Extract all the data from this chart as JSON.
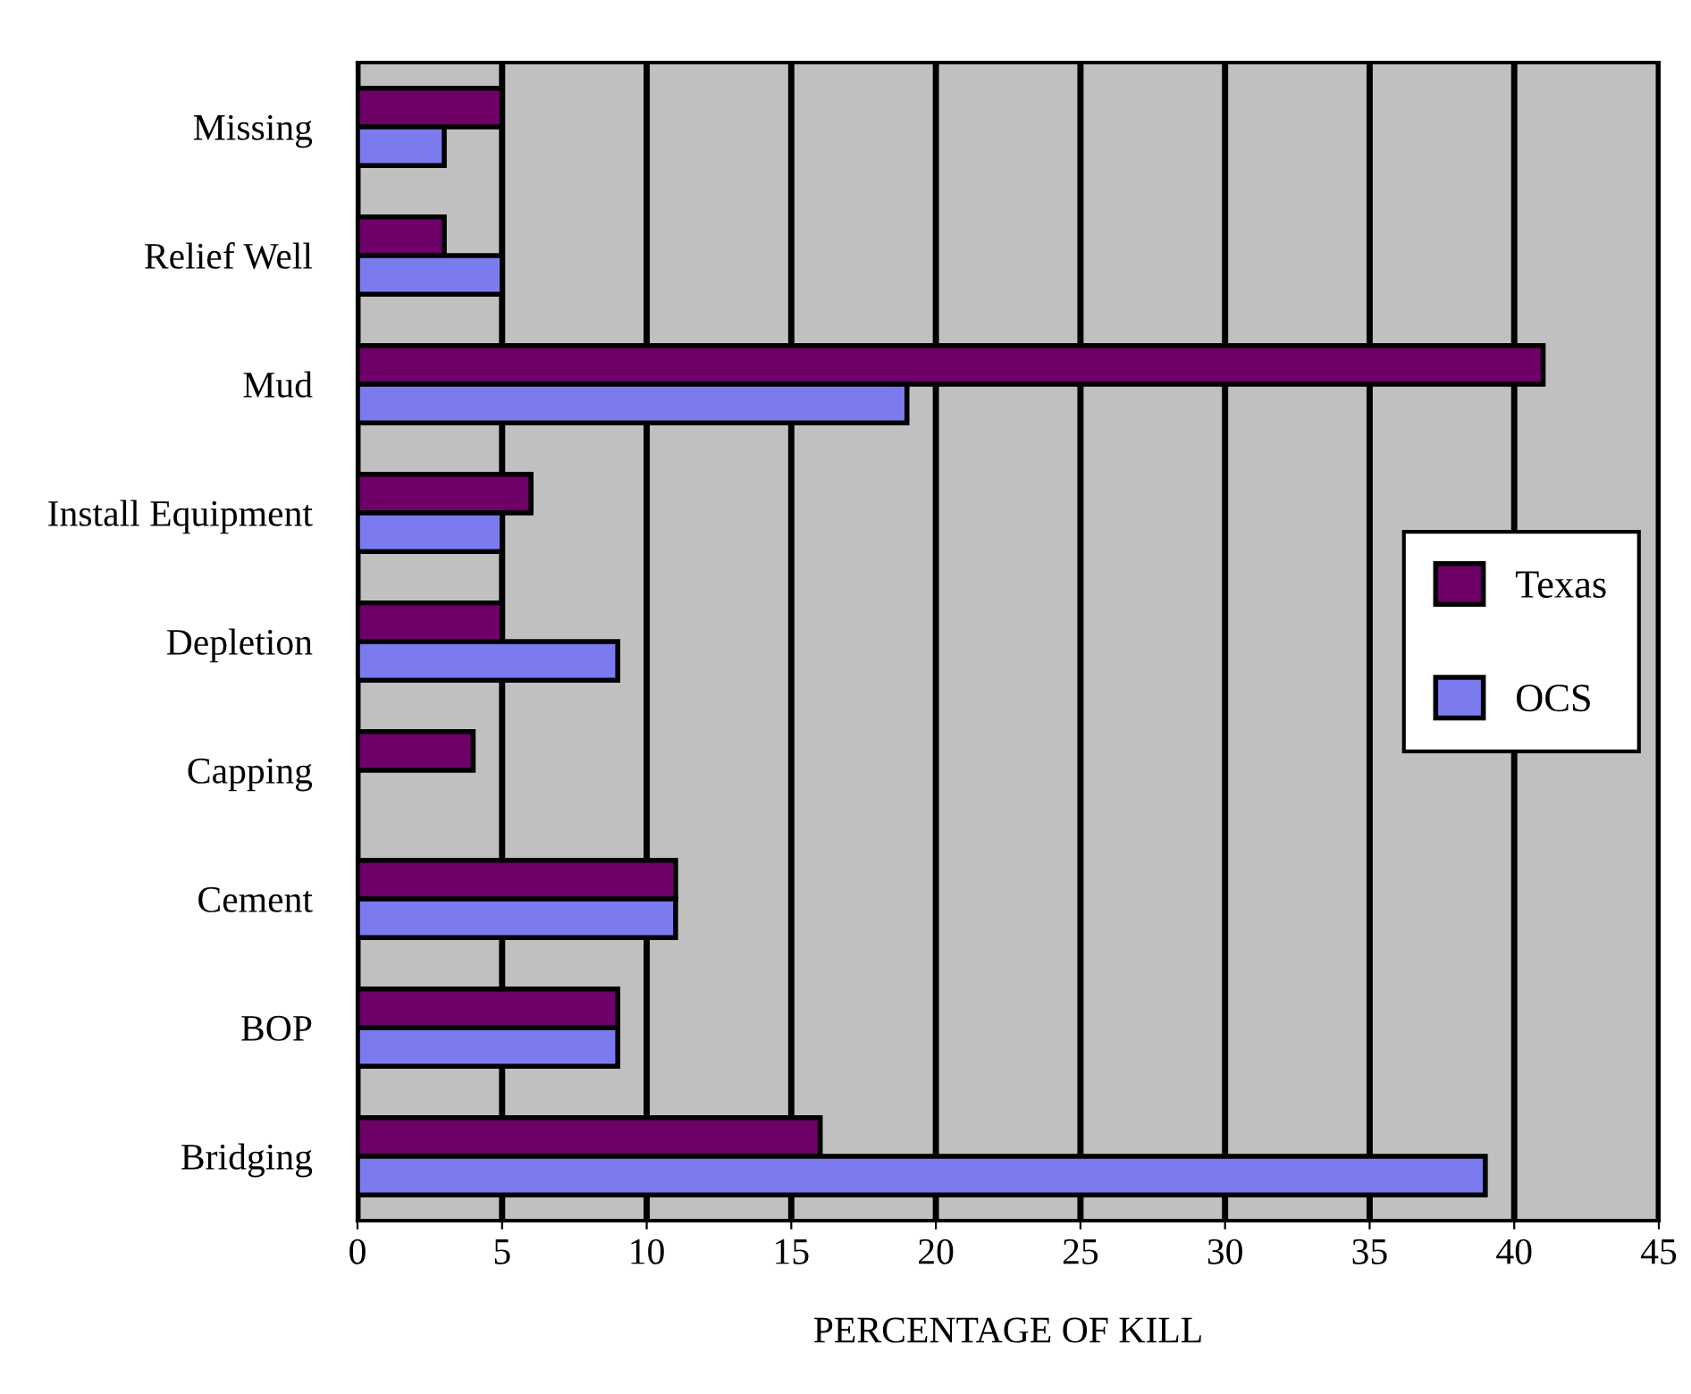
{
  "chart_data": {
    "type": "bar",
    "orientation": "horizontal",
    "xlabel": "PERCENTAGE OF KILL",
    "categories": [
      "Missing",
      "Relief Well",
      "Mud",
      "Install Equipment",
      "Depletion",
      "Capping",
      "Cement",
      "BOP",
      "Bridging"
    ],
    "series": [
      {
        "name": "Texas",
        "color": "#6e0068",
        "values": [
          5,
          3,
          41,
          6,
          5,
          4,
          11,
          9,
          16
        ]
      },
      {
        "name": "OCS",
        "color": "#7b7bef",
        "values": [
          3,
          5,
          19,
          5,
          9,
          null,
          11,
          9,
          39
        ]
      }
    ],
    "xlim": [
      0,
      45
    ],
    "xticks": [
      0,
      5,
      10,
      15,
      20,
      25,
      30,
      35,
      40,
      45
    ],
    "grid": "x",
    "legend": "right"
  }
}
